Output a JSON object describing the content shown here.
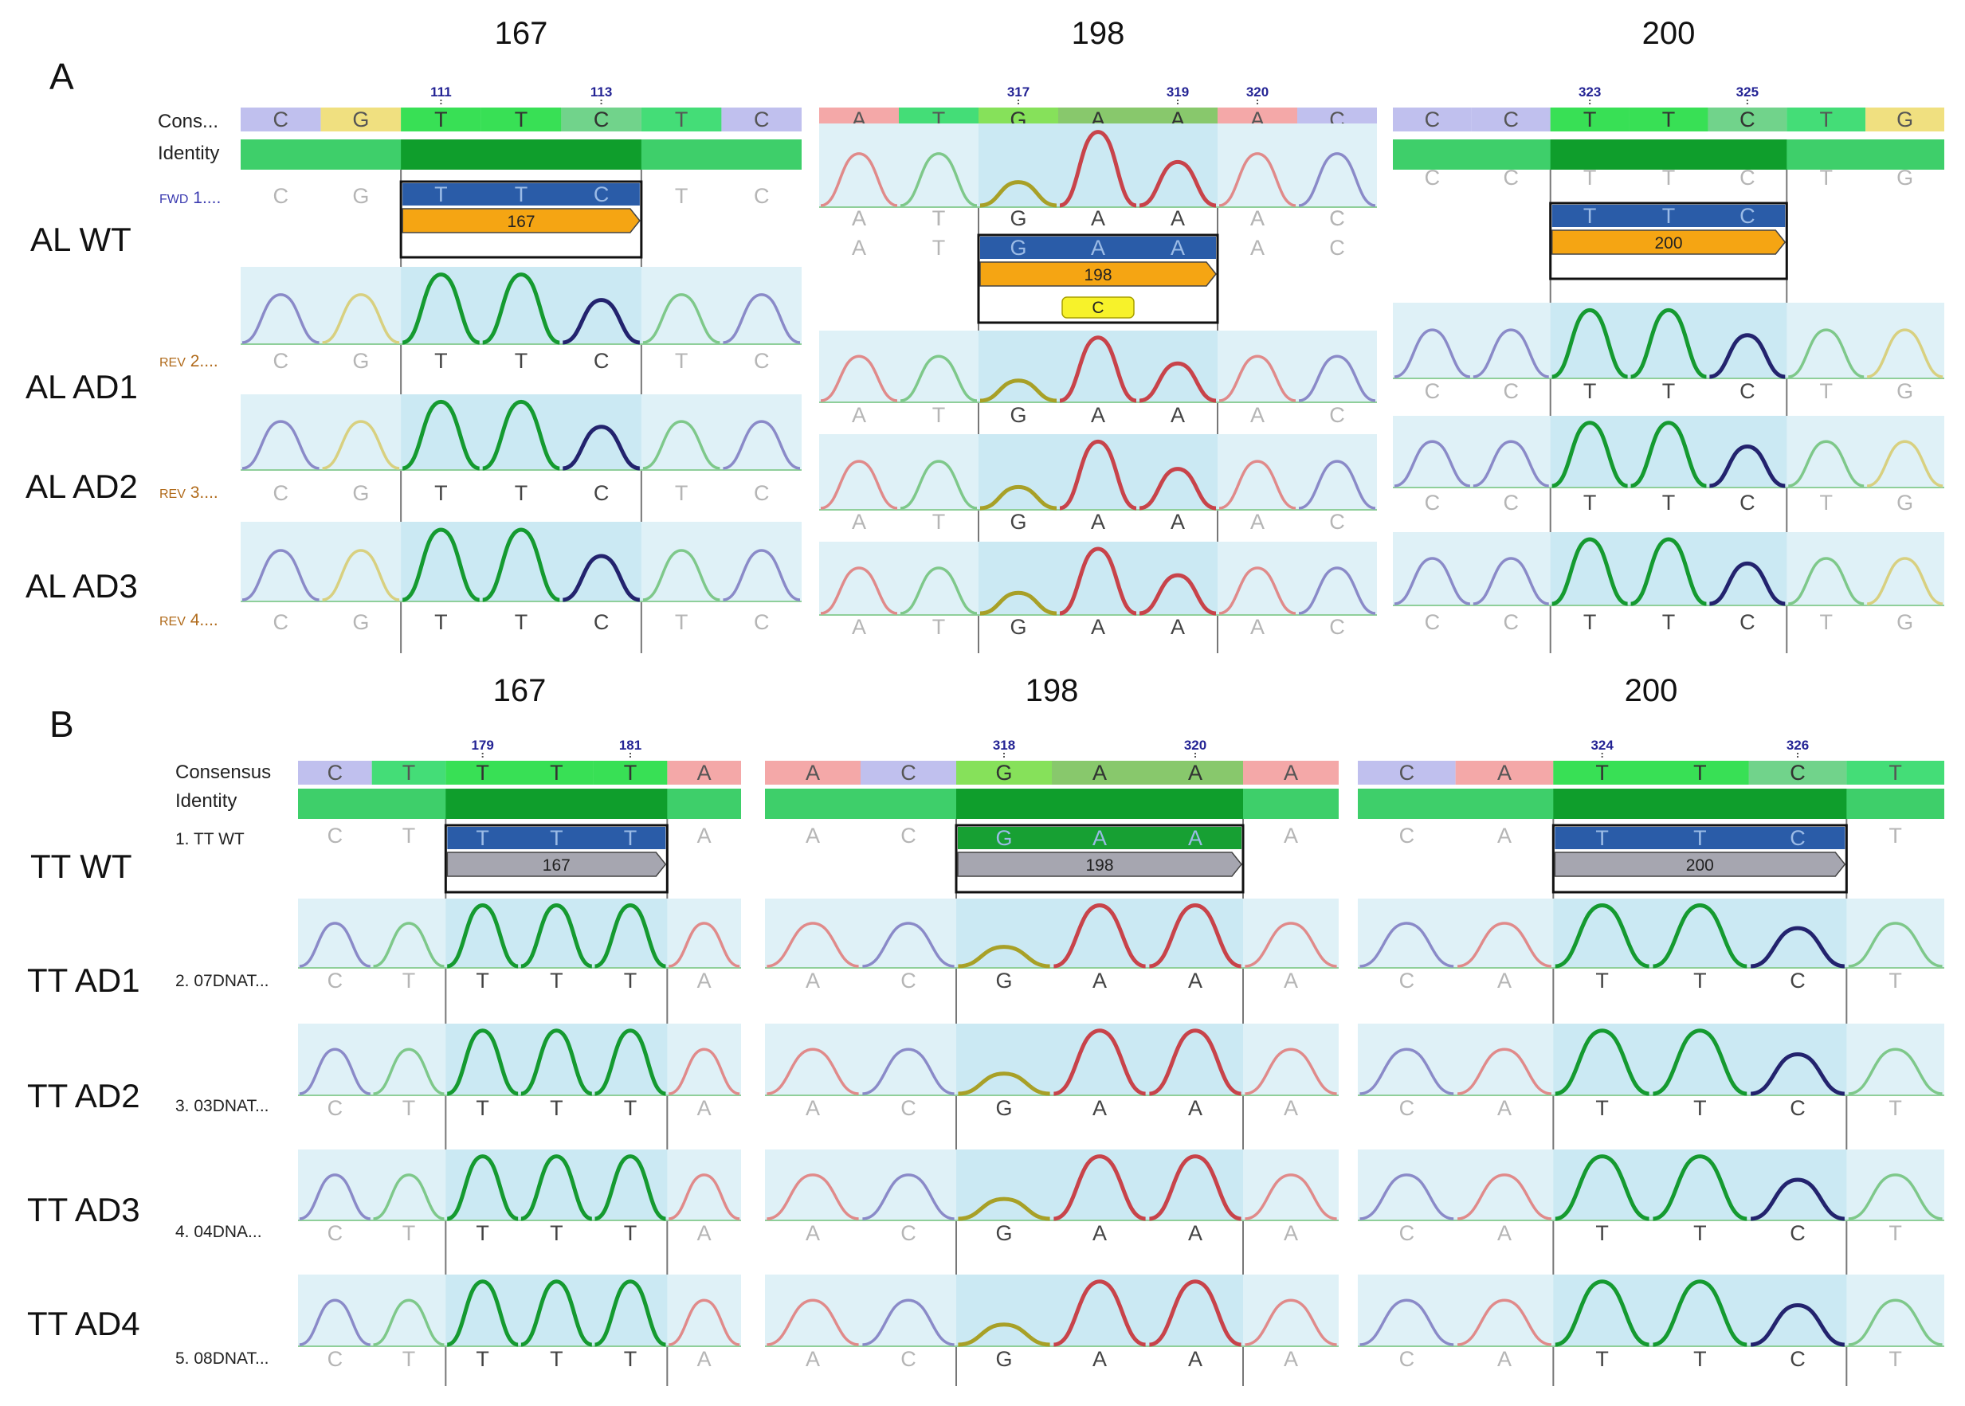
{
  "panels": [
    {
      "letter": "A",
      "header_labels": [
        "Cons...",
        "Identity"
      ],
      "header_label_color": "#222222",
      "rows": [
        {
          "label": "AL WT"
        },
        {
          "label": "AL AD1"
        },
        {
          "label": "AL AD2"
        },
        {
          "label": "AL AD3"
        }
      ],
      "track_labels": [
        {
          "prefix": "FWD",
          "suffix": " 1....",
          "color": "#3a3ab0"
        },
        {
          "prefix": "REV",
          "suffix": " 2....",
          "color": "#b06a1a"
        },
        {
          "prefix": "REV",
          "suffix": " 3....",
          "color": "#b06a1a"
        },
        {
          "prefix": "REV",
          "suffix": " 4....",
          "color": "#b06a1a"
        }
      ],
      "sites": [
        {
          "title": "167",
          "bases": [
            "C",
            "G",
            "T",
            "T",
            "C",
            "T",
            "C"
          ],
          "positions": [
            {
              "label": "111",
              "idx": 2
            },
            {
              "label": "113",
              "idx": 4
            }
          ],
          "annotation": "167",
          "variant": null
        },
        {
          "title": "198",
          "bases": [
            "A",
            "T",
            "G",
            "A",
            "A",
            "A",
            "C"
          ],
          "positions": [
            {
              "label": "317",
              "idx": 2
            },
            {
              "label": "319",
              "idx": 4
            },
            {
              "label": "320",
              "idx": 5
            }
          ],
          "annotation": "198",
          "variant": "C"
        },
        {
          "title": "200",
          "bases": [
            "C",
            "C",
            "T",
            "T",
            "C",
            "T",
            "G"
          ],
          "positions": [
            {
              "label": "323",
              "idx": 2
            },
            {
              "label": "325",
              "idx": 4
            }
          ],
          "annotation": "200",
          "variant": null
        }
      ]
    },
    {
      "letter": "B",
      "header_labels": [
        "Consensus",
        "Identity"
      ],
      "header_label_color": "#222222",
      "rows": [
        {
          "label": "TT WT"
        },
        {
          "label": "TT AD1"
        },
        {
          "label": "TT AD2"
        },
        {
          "label": "TT AD3"
        },
        {
          "label": "TT AD4"
        }
      ],
      "track_labels": [
        {
          "prefix": "",
          "suffix": "1. TT WT",
          "color": "#222222"
        },
        {
          "prefix": "",
          "suffix": "2. 07DNAT...",
          "color": "#222222"
        },
        {
          "prefix": "",
          "suffix": "3. 03DNAT...",
          "color": "#222222"
        },
        {
          "prefix": "",
          "suffix": "4. 04DNA...",
          "color": "#222222"
        },
        {
          "prefix": "",
          "suffix": "5. 08DNAT...",
          "color": "#222222"
        }
      ],
      "sites": [
        {
          "title": "167",
          "bases": [
            "C",
            "T",
            "T",
            "T",
            "T",
            "A"
          ],
          "positions": [
            {
              "label": "179",
              "idx": 2
            },
            {
              "label": "181",
              "idx": 4
            }
          ],
          "annotation": "167",
          "variant": null
        },
        {
          "title": "198",
          "bases": [
            "A",
            "C",
            "G",
            "A",
            "A",
            "A"
          ],
          "positions": [
            {
              "label": "318",
              "idx": 2
            },
            {
              "label": "320",
              "idx": 4
            }
          ],
          "annotation": "198",
          "variant": null
        },
        {
          "title": "200",
          "bases": [
            "C",
            "A",
            "T",
            "T",
            "C",
            "T"
          ],
          "positions": [
            {
              "label": "324",
              "idx": 2
            },
            {
              "label": "326",
              "idx": 4
            }
          ],
          "annotation": "200",
          "variant": null
        }
      ]
    }
  ],
  "colors": {
    "A": "#c8434a",
    "C": "#23236e",
    "G": "#a8a027",
    "T": "#159a30",
    "A_light": "#e08a8a",
    "C_light": "#8a8ac8",
    "G_light": "#d8d080",
    "T_light": "#7ec88a",
    "cons_A": "#f4a8a8",
    "cons_C": "#c0c0ee",
    "cons_G": "#f0e080",
    "cons_T": "#44dd77",
    "consensus_hi": "#2fe23a",
    "identity": "#3ecf6a",
    "identity_hi": "#0f9e2c",
    "gene_bar": "#2a5ca8",
    "arrow_A": "#f5a513",
    "arrow_B": "#a6a6b0",
    "variant_box": "#f7f22a",
    "trace_bg": "#dff1f7"
  }
}
